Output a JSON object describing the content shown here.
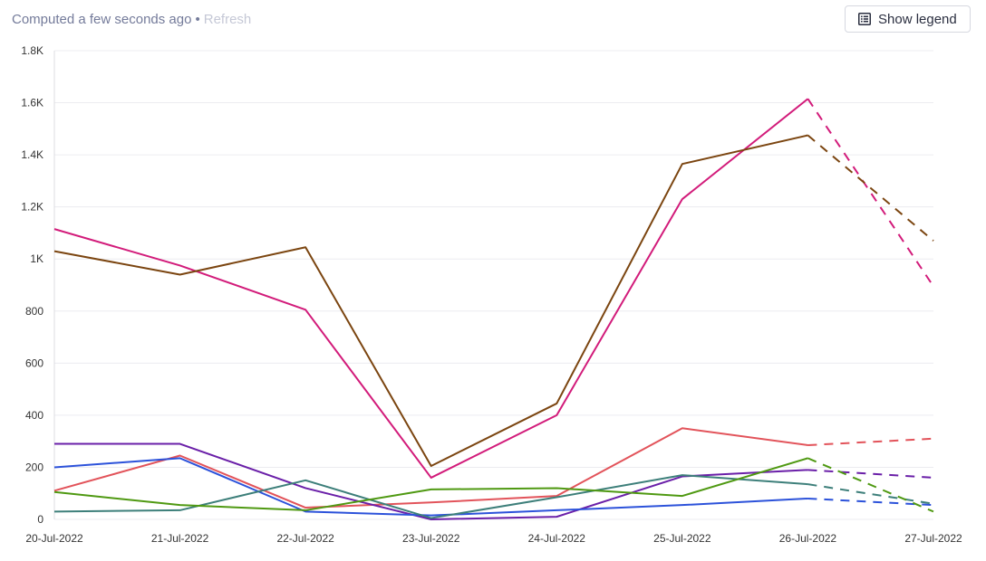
{
  "header": {
    "status_text": "Computed a few seconds ago",
    "separator": "•",
    "refresh_label": "Refresh",
    "legend_button_label": "Show legend",
    "legend_icon": "legend-list-icon"
  },
  "chart_data": {
    "type": "line",
    "title": "",
    "xlabel": "",
    "ylabel": "",
    "categories": [
      "20-Jul-2022",
      "21-Jul-2022",
      "22-Jul-2022",
      "23-Jul-2022",
      "24-Jul-2022",
      "25-Jul-2022",
      "26-Jul-2022",
      "27-Jul-2022"
    ],
    "yticks": [
      0,
      200,
      400,
      600,
      800,
      1000,
      1200,
      1400,
      1600,
      1800
    ],
    "ytick_labels": [
      "0",
      "200",
      "400",
      "600",
      "800",
      "1K",
      "1.2K",
      "1.4K",
      "1.6K",
      "1.8K"
    ],
    "ylim": [
      0,
      1800
    ],
    "grid": true,
    "legend": "hidden",
    "last_segment_style": "dashed",
    "series": [
      {
        "color": "#d21b7a",
        "values": [
          1115,
          975,
          805,
          160,
          400,
          1230,
          1615,
          895
        ]
      },
      {
        "color": "#7b4510",
        "values": [
          1030,
          940,
          1045,
          205,
          445,
          1365,
          1475,
          1070
        ]
      },
      {
        "color": "#e2535a",
        "values": [
          110,
          245,
          45,
          65,
          90,
          350,
          285,
          310
        ]
      },
      {
        "color": "#6a1fa8",
        "values": [
          290,
          290,
          120,
          0,
          10,
          165,
          190,
          160
        ]
      },
      {
        "color": "#2c52da",
        "values": [
          200,
          235,
          30,
          15,
          35,
          55,
          80,
          55
        ]
      },
      {
        "color": "#3d7f7a",
        "values": [
          30,
          35,
          150,
          5,
          85,
          170,
          135,
          60
        ]
      },
      {
        "color": "#4f9912",
        "values": [
          105,
          55,
          35,
          115,
          120,
          90,
          235,
          30
        ]
      }
    ]
  }
}
